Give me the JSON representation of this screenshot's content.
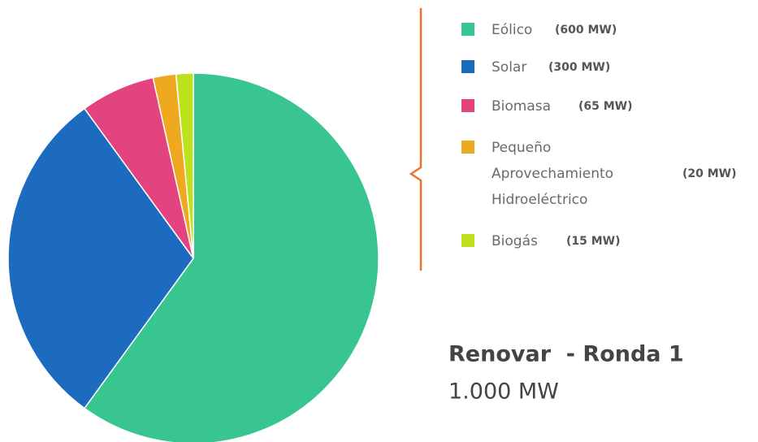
{
  "chart_data": {
    "type": "pie",
    "title": "Renovar  - Ronda 1",
    "subtitle": "1.000 MW",
    "categories": [
      "Eólico",
      "Solar",
      "Biomasa",
      "Pequeño Aprovechamiento Hidroeléctrico",
      "Biogás"
    ],
    "values": [
      600,
      300,
      65,
      20,
      15
    ],
    "value_labels": [
      "(600 MW)",
      "(300 MW)",
      "(65 MW)",
      "(20 MW)",
      "(15 MW)"
    ],
    "colors": [
      "#38c58f",
      "#1c6bbf",
      "#e3437f",
      "#efa920",
      "#bde11c"
    ]
  }
}
